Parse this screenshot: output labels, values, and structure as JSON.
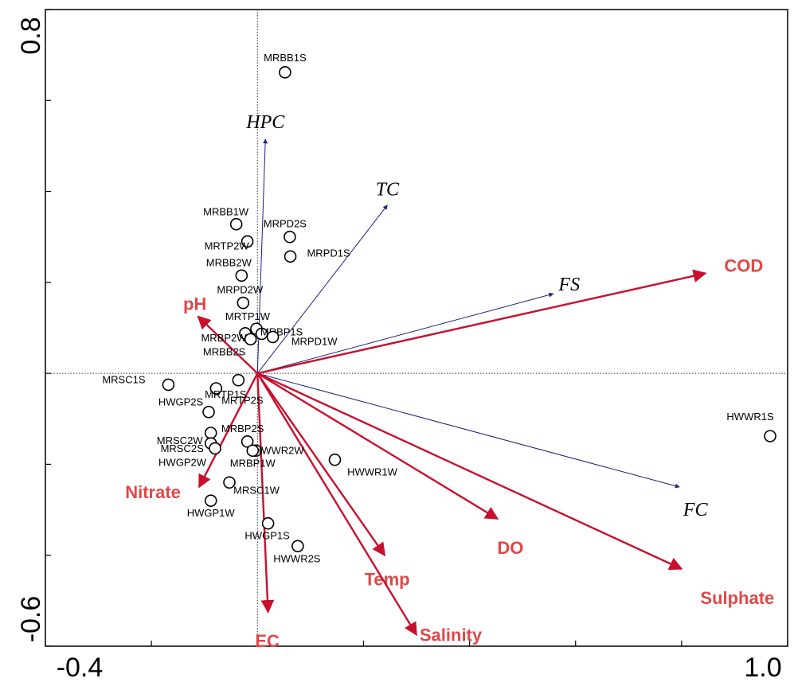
{
  "chart_data": {
    "type": "scatter",
    "subtype": "ordination-biplot",
    "xlim": [
      -0.4,
      1.0
    ],
    "ylim": [
      -0.6,
      0.8
    ],
    "x_ticks": [
      "-0.4",
      "1.0"
    ],
    "y_ticks": [
      "-0.6",
      "0.8"
    ],
    "reference_lines": "dotted lines at x=0 and y=0",
    "grid": false,
    "colors": {
      "env_arrows": "#c8102e",
      "env_labels": "#e04848",
      "species_arrows": "#1a237e",
      "points": "#000000"
    },
    "samples": [
      {
        "label": "MRBB1S",
        "x": 0.052,
        "y": 0.662
      },
      {
        "label": "MRBB1W",
        "x": -0.04,
        "y": 0.328
      },
      {
        "label": "MRTP2W",
        "x": -0.019,
        "y": 0.29
      },
      {
        "label": "MRPD2S",
        "x": 0.061,
        "y": 0.3
      },
      {
        "label": "MRPD1S",
        "x": 0.062,
        "y": 0.257
      },
      {
        "label": "MRBB2W",
        "x": -0.03,
        "y": 0.215
      },
      {
        "label": "MRPD2W",
        "x": -0.027,
        "y": 0.155
      },
      {
        "label": "MRTP1W",
        "x": -0.002,
        "y": 0.098
      },
      {
        "label": "MRBP1S",
        "x": 0.008,
        "y": 0.087
      },
      {
        "label": "MRBP2W",
        "x": -0.023,
        "y": 0.088
      },
      {
        "label": "MRBB2S",
        "x": -0.013,
        "y": 0.075
      },
      {
        "label": "MRPD1W",
        "x": 0.029,
        "y": 0.08
      },
      {
        "label": "MRSC1S",
        "x": -0.168,
        "y": -0.025
      },
      {
        "label": "MRTP1S",
        "x": -0.078,
        "y": -0.033
      },
      {
        "label": "HWGP2S",
        "x": -0.092,
        "y": -0.085
      },
      {
        "label": "MRSC2W",
        "x": -0.088,
        "y": -0.131
      },
      {
        "label": "MRSC2S",
        "x": -0.088,
        "y": -0.154
      },
      {
        "label": "HWGP2W",
        "x": -0.08,
        "y": -0.165
      },
      {
        "label": "MRTP2S",
        "x": -0.036,
        "y": -0.015
      },
      {
        "label": "MRBP2S",
        "x": -0.019,
        "y": -0.15
      },
      {
        "label": "HWWR2W",
        "x": -0.003,
        "y": -0.17
      },
      {
        "label": "MRBP1W",
        "x": -0.009,
        "y": -0.17
      },
      {
        "label": "MRSC1W",
        "x": -0.053,
        "y": -0.24
      },
      {
        "label": "HWGP1W",
        "x": -0.088,
        "y": -0.28
      },
      {
        "label": "HWGP1S",
        "x": 0.02,
        "y": -0.33
      },
      {
        "label": "HWWR2S",
        "x": 0.076,
        "y": -0.38
      },
      {
        "label": "HWWR1W",
        "x": 0.146,
        "y": -0.19
      },
      {
        "label": "HWWR1S",
        "x": 0.967,
        "y": -0.138
      }
    ],
    "environmental_vectors": [
      {
        "label": "COD",
        "x": 0.845,
        "y": 0.22
      },
      {
        "label": "pH",
        "x": -0.112,
        "y": 0.125
      },
      {
        "label": "Nitrate",
        "x": -0.11,
        "y": -0.25
      },
      {
        "label": "EC",
        "x": 0.02,
        "y": -0.525
      },
      {
        "label": "Temp",
        "x": 0.24,
        "y": -0.4
      },
      {
        "label": "Salinity",
        "x": 0.3,
        "y": -0.575
      },
      {
        "label": "DO",
        "x": 0.453,
        "y": -0.32
      },
      {
        "label": "Sulphate",
        "x": 0.8,
        "y": -0.43
      }
    ],
    "species_vectors": [
      {
        "label": "HPC",
        "x": 0.015,
        "y": 0.515
      },
      {
        "label": "TC",
        "x": 0.245,
        "y": 0.37
      },
      {
        "label": "FS",
        "x": 0.558,
        "y": 0.175
      },
      {
        "label": "FC",
        "x": 0.796,
        "y": -0.25
      }
    ]
  }
}
